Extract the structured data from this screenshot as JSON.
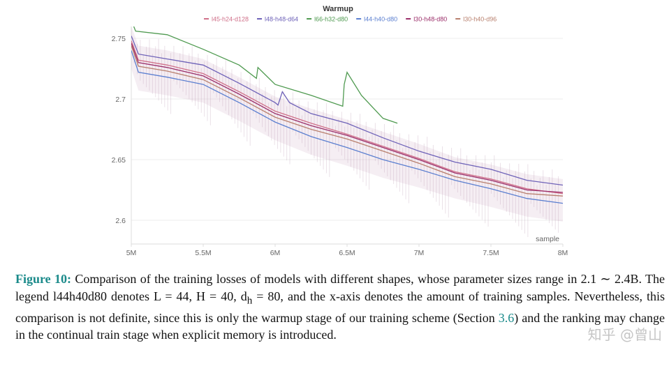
{
  "chart_data": {
    "type": "line",
    "title": "Warmup",
    "xlabel": "sample",
    "ylabel": "",
    "xlim": [
      5000000,
      8000000
    ],
    "ylim": [
      2.58,
      2.76
    ],
    "x_ticks": [
      "5M",
      "5.5M",
      "6M",
      "6.5M",
      "7M",
      "7.5M",
      "8M"
    ],
    "x_tick_values": [
      5000000,
      5500000,
      6000000,
      6500000,
      7000000,
      7500000,
      8000000
    ],
    "y_ticks": [
      "2.6",
      "2.65",
      "2.7",
      "2.75"
    ],
    "y_tick_values": [
      2.6,
      2.65,
      2.7,
      2.75
    ],
    "grid": true,
    "legend_position": "top-center",
    "series": [
      {
        "name": "l45-h24-d128",
        "color": "#d0708a",
        "x": [
          5.0,
          5.05,
          5.25,
          5.5,
          5.75,
          6.0,
          6.25,
          6.5,
          6.75,
          7.0,
          7.25,
          7.5,
          7.75,
          8.0
        ],
        "y": [
          2.748,
          2.732,
          2.728,
          2.721,
          2.706,
          2.69,
          2.68,
          2.671,
          2.661,
          2.651,
          2.64,
          2.634,
          2.626,
          2.622
        ]
      },
      {
        "name": "l48-h48-d64",
        "color": "#6e62b8",
        "x": [
          5.0,
          5.05,
          5.25,
          5.5,
          5.75,
          6.0,
          6.02,
          6.05,
          6.1,
          6.25,
          6.5,
          6.75,
          7.0,
          7.25,
          7.5,
          7.75,
          8.0
        ],
        "y": [
          2.752,
          2.737,
          2.733,
          2.728,
          2.713,
          2.697,
          2.695,
          2.706,
          2.697,
          2.688,
          2.68,
          2.668,
          2.657,
          2.648,
          2.642,
          2.633,
          2.629
        ]
      },
      {
        "name": "l66-h32-d80",
        "color": "#4f9a50",
        "x": [
          5.0,
          5.03,
          5.25,
          5.5,
          5.75,
          5.87,
          5.88,
          6.0,
          6.25,
          6.47,
          6.48,
          6.5,
          6.6,
          6.75,
          6.85
        ],
        "y": [
          2.765,
          2.756,
          2.753,
          2.741,
          2.728,
          2.717,
          2.726,
          2.712,
          2.703,
          2.694,
          2.712,
          2.722,
          2.703,
          2.684,
          2.68
        ]
      },
      {
        "name": "l44-h40-d80",
        "color": "#5b7fd0",
        "x": [
          5.0,
          5.05,
          5.25,
          5.5,
          5.75,
          6.0,
          6.25,
          6.5,
          6.75,
          7.0,
          7.25,
          7.5,
          7.75,
          8.0
        ],
        "y": [
          2.74,
          2.722,
          2.718,
          2.712,
          2.697,
          2.681,
          2.669,
          2.66,
          2.65,
          2.642,
          2.633,
          2.626,
          2.618,
          2.614
        ]
      },
      {
        "name": "l30-h48-d80",
        "color": "#9b2f6a",
        "x": [
          5.0,
          5.05,
          5.25,
          5.5,
          5.75,
          6.0,
          6.25,
          6.5,
          6.75,
          7.0,
          7.25,
          7.5,
          7.75,
          8.0
        ],
        "y": [
          2.746,
          2.73,
          2.726,
          2.719,
          2.704,
          2.688,
          2.678,
          2.67,
          2.66,
          2.65,
          2.639,
          2.633,
          2.625,
          2.623
        ]
      },
      {
        "name": "l30-h40-d96",
        "color": "#b8806e",
        "x": [
          5.0,
          5.05,
          5.25,
          5.5,
          5.75,
          6.0,
          6.25,
          6.5,
          6.75,
          7.0,
          7.25,
          7.5,
          7.75,
          8.0
        ],
        "y": [
          2.744,
          2.727,
          2.723,
          2.716,
          2.701,
          2.685,
          2.675,
          2.667,
          2.657,
          2.647,
          2.636,
          2.63,
          2.622,
          2.62
        ]
      }
    ]
  },
  "caption": {
    "label": "Figure 10:",
    "text1": " Comparison of the training losses of models with different shapes, whose parameter sizes range in 2.1 ∼ 2.4B. The legend l44h40d80 denotes L = 44, H = 40, d",
    "sub": "h",
    "text2": " = 80, and the x-axis denotes the amount of training samples. Nevertheless, this comparison is not definite, since this is only the warmup stage of our training scheme (Section ",
    "ref": "3.6",
    "text3": ") and the ranking may change in the continual train stage when explicit memory is introduced."
  },
  "watermark": "知乎 @曾山"
}
